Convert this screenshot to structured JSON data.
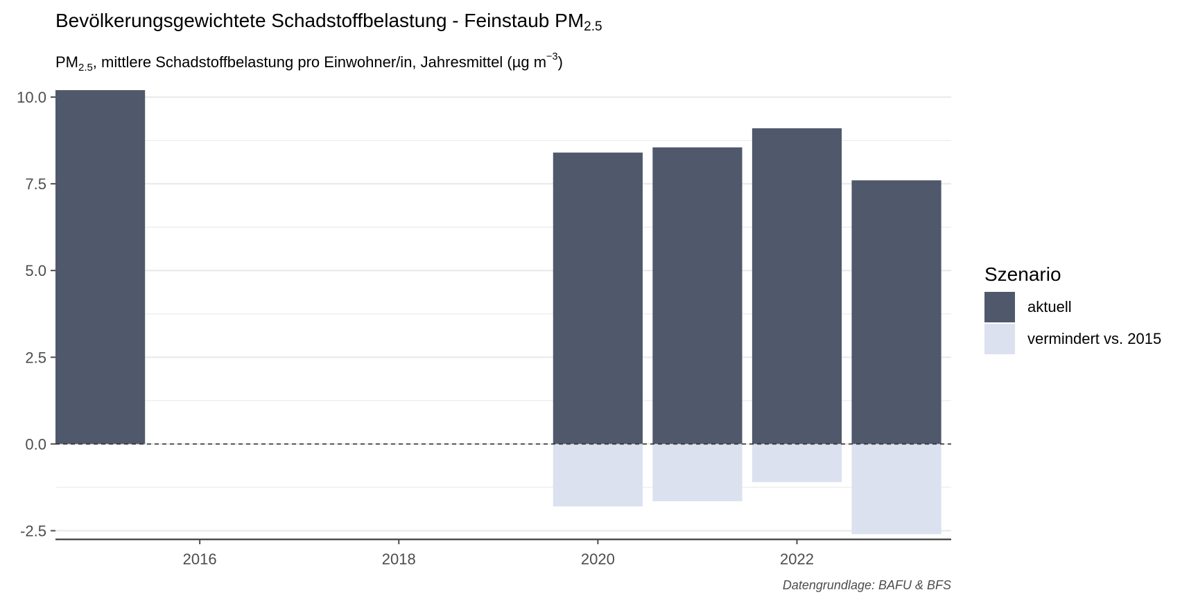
{
  "title": {
    "main": "Bevölkerungsgewichtete Schadstoffbelastung - Feinstaub PM",
    "sub": "2.5"
  },
  "subtitle": {
    "pm": "PM",
    "pm_sub": "2.5",
    "text": ", mittlere Schadstoffbelastung pro Einwohner/in, Jahresmittel (µg m",
    "exp": "−3",
    "close": ")"
  },
  "caption": "Datengrundlage: BAFU & BFS",
  "colors": {
    "aktuell": "#4f596b",
    "vermindert": "#dce1ef",
    "grid": "#ebebeb",
    "axis": "#4d4d4d"
  },
  "chart_data": {
    "type": "bar",
    "x": [
      2015,
      2020,
      2021,
      2022,
      2023
    ],
    "series": [
      {
        "name": "aktuell",
        "values": [
          10.2,
          8.4,
          8.55,
          9.1,
          7.6
        ]
      },
      {
        "name": "vermindert vs. 2015",
        "values": [
          null,
          -1.8,
          -1.65,
          -1.1,
          -2.6
        ]
      }
    ],
    "xticks": [
      2016,
      2018,
      2020,
      2022
    ],
    "yticks": [
      10.0,
      7.5,
      5.0,
      2.5,
      0.0,
      -2.5
    ],
    "ytick_labels": [
      "10.0",
      "7.5",
      "5.0",
      "2.5",
      "0.0",
      "-2.5"
    ],
    "xlim": [
      2014.55,
      2023.55
    ],
    "ylim": [
      -2.75,
      10.4
    ],
    "reference_line": 0,
    "grid": true,
    "legend": {
      "title": "Szenario",
      "position": "right",
      "entries": [
        "aktuell",
        "vermindert vs. 2015"
      ]
    }
  }
}
